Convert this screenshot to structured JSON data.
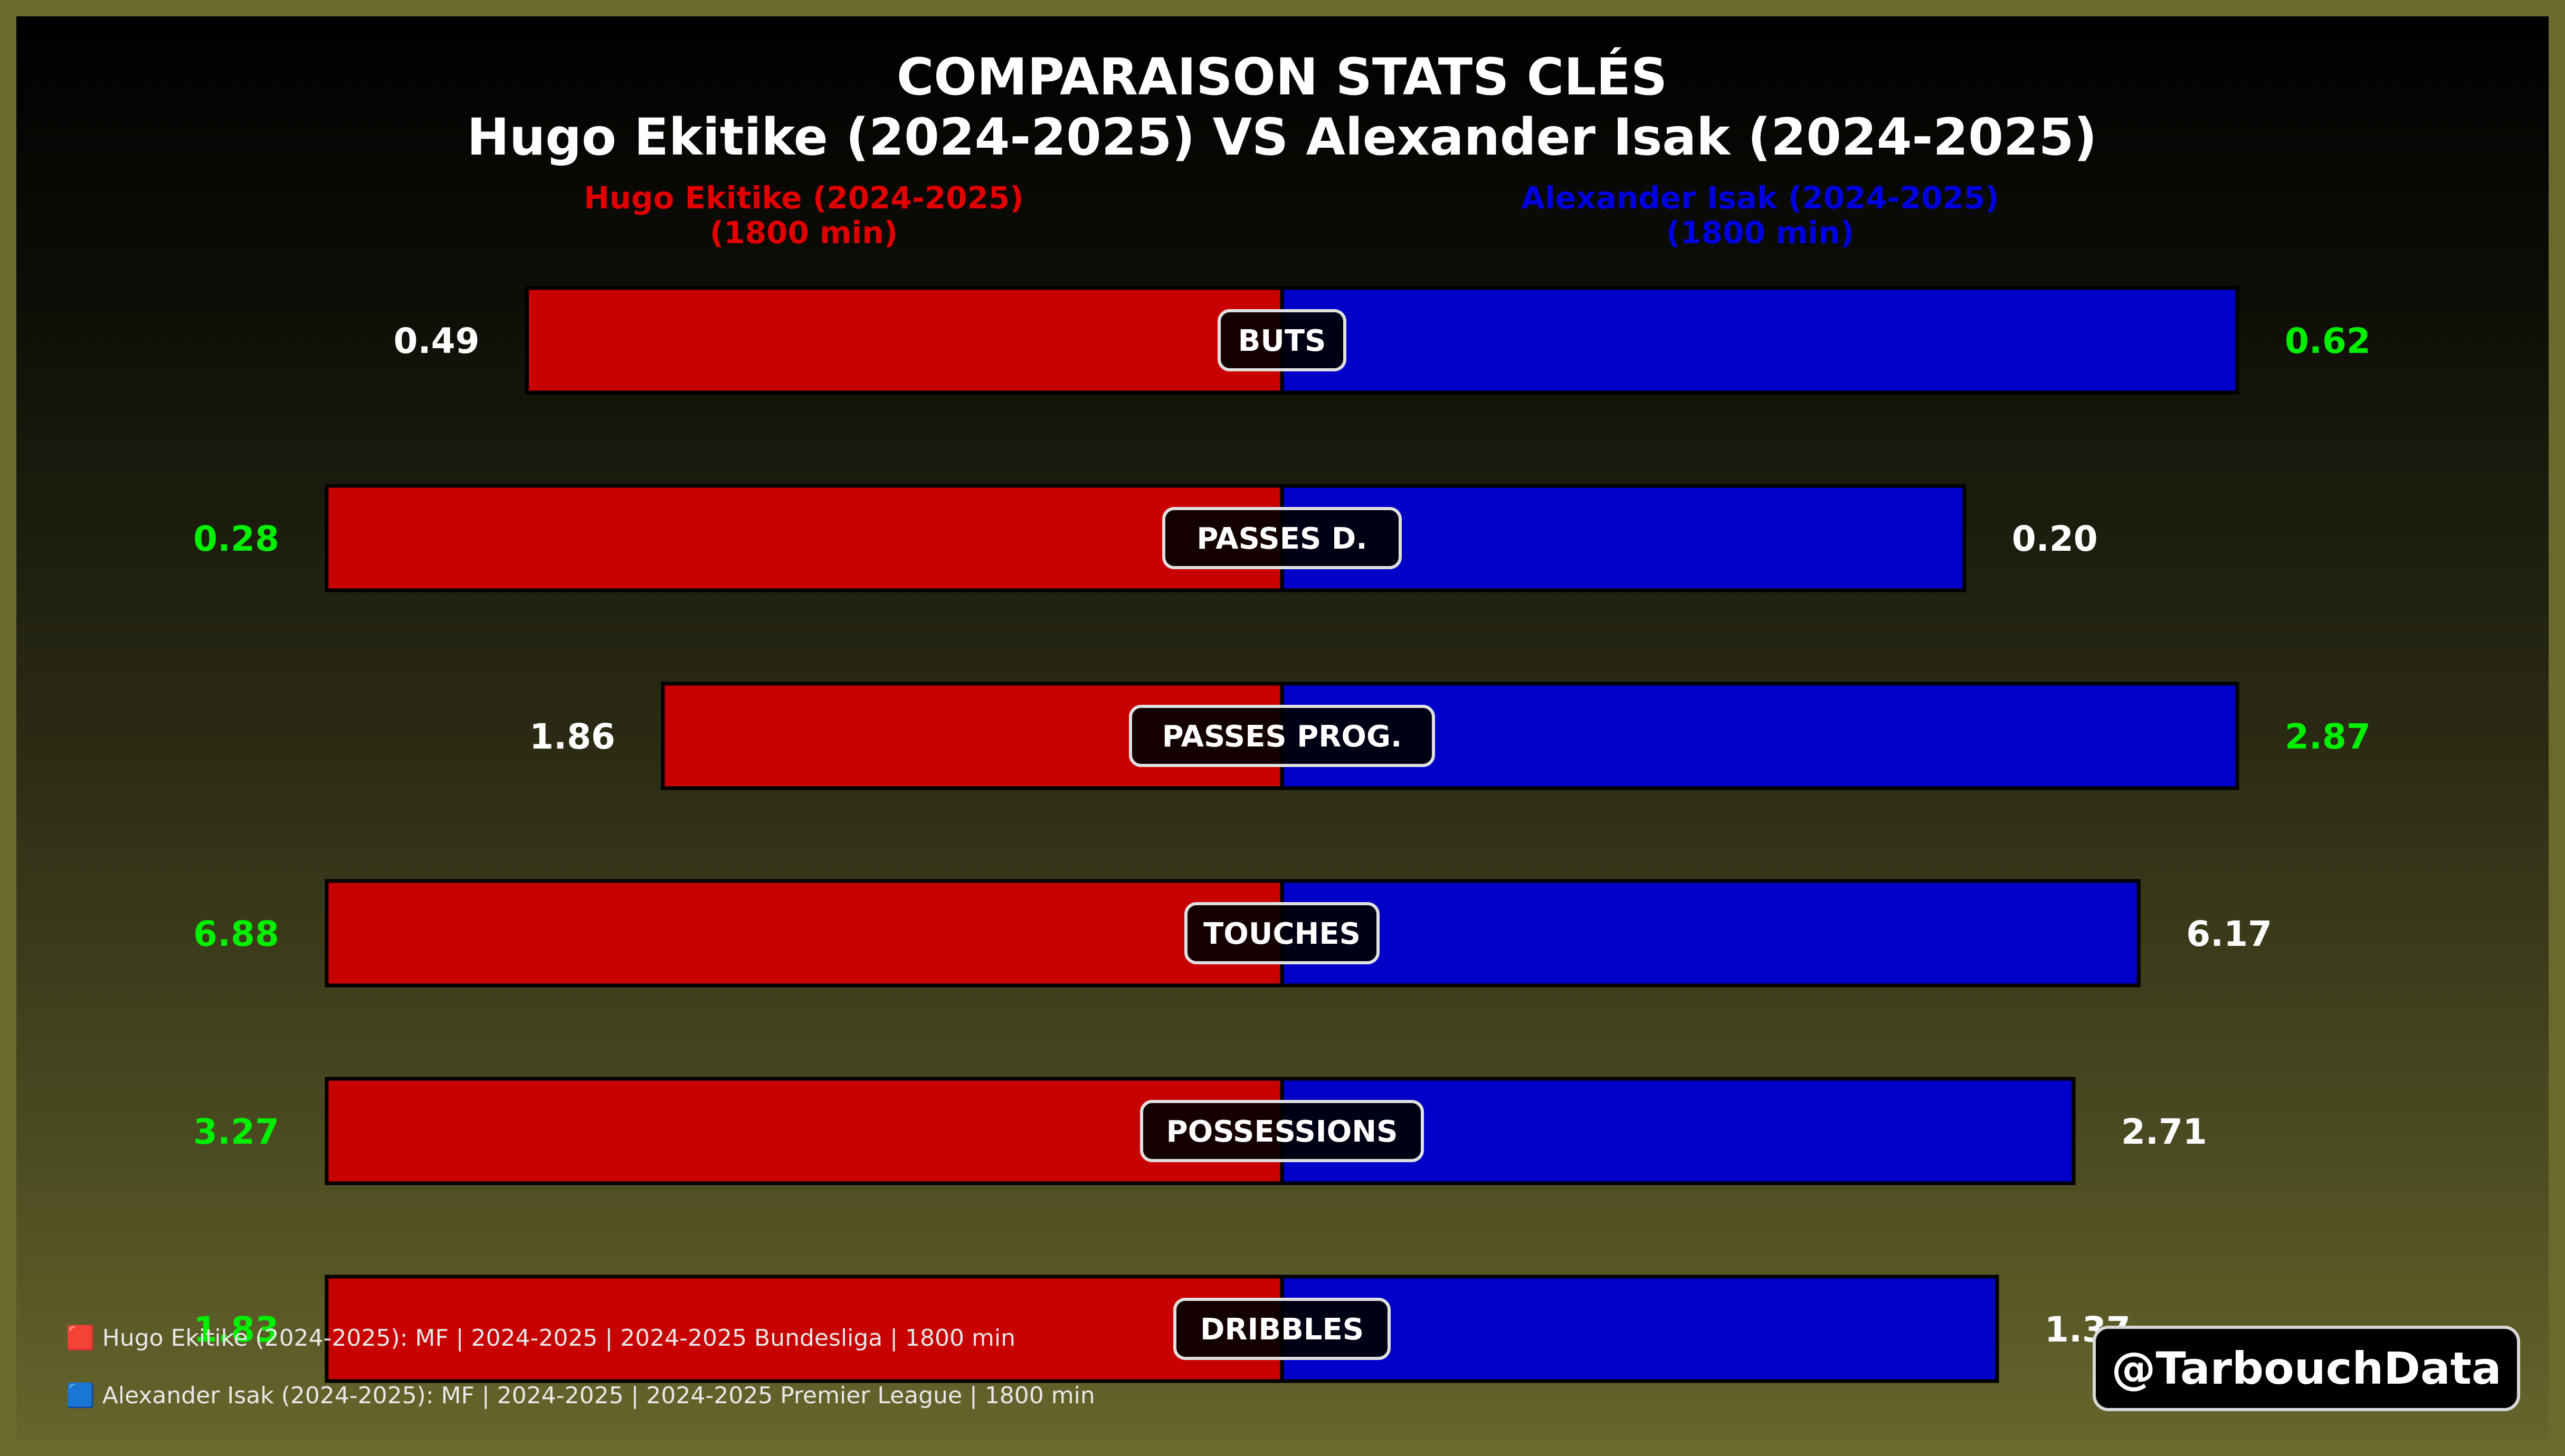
{
  "chart_data": {
    "type": "bar",
    "title": "COMPARAISON STATS CLÉS",
    "subtitle": "Hugo Ekitike (2024-2025) VS Alexander Isak (2024-2025)",
    "categories": [
      "BUTS",
      "PASSES D.",
      "PASSES PROG.",
      "TOUCHES",
      "POSSESSIONS",
      "DRIBBLES"
    ],
    "series": [
      {
        "name": "Hugo Ekitike (2024-2025)",
        "minutes": "(1800 min)",
        "color": "#c80000",
        "values": [
          0.49,
          0.28,
          1.86,
          6.88,
          3.27,
          1.83
        ],
        "labels": [
          "0.49",
          "0.28",
          "1.86",
          "6.88",
          "3.27",
          "1.83"
        ]
      },
      {
        "name": "Alexander Isak (2024-2025)",
        "minutes": "(1800 min)",
        "color": "#0000c8",
        "values": [
          0.62,
          0.2,
          2.87,
          6.17,
          2.71,
          1.37
        ],
        "labels": [
          "0.62",
          "0.20",
          "2.87",
          "6.17",
          "2.71",
          "1.37"
        ]
      }
    ],
    "winner_color": "#00ee00",
    "neutral_color": "#ffffff"
  },
  "footnotes": [
    "🟥 Hugo Ekitike (2024-2025): MF | 2024-2025 | 2024-2025 Bundesliga | 1800 min",
    "🟦 Alexander Isak (2024-2025): MF | 2024-2025 | 2024-2025 Premier League | 1800 min"
  ],
  "watermark": "@TarbouchData"
}
